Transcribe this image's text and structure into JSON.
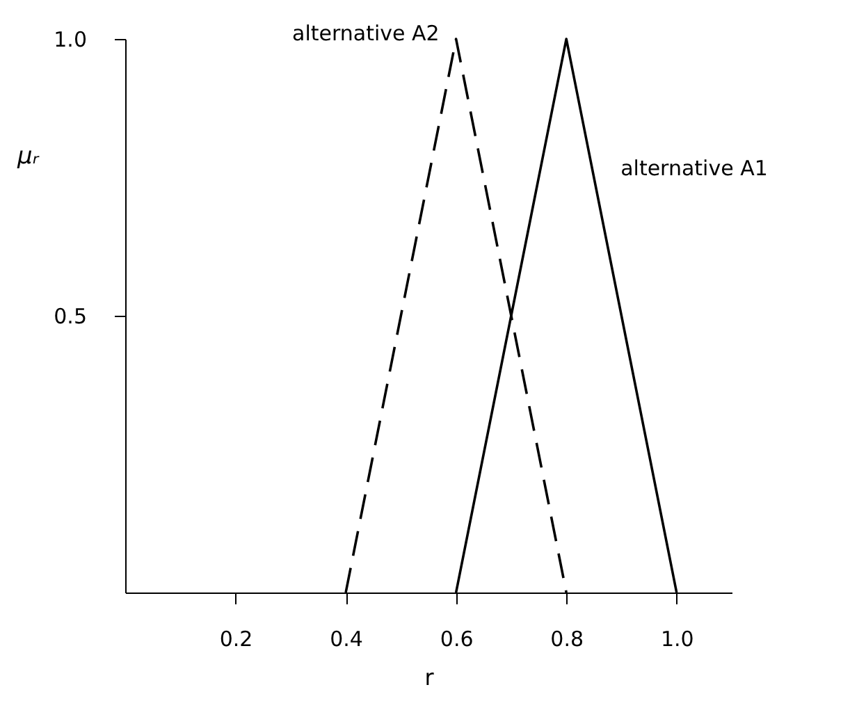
{
  "chart_data": {
    "type": "line",
    "xlabel": "r",
    "ylabel": "μᵣ",
    "series": [
      {
        "name": "alternative A2",
        "color": "#000000",
        "line_style": "dashed",
        "x": [
          0.4,
          0.6,
          0.8
        ],
        "values": [
          0,
          1.0,
          0
        ]
      },
      {
        "name": "alternative A1",
        "color": "#000000",
        "line_style": "solid",
        "x": [
          0.6,
          0.8,
          1.0
        ],
        "values": [
          0,
          1.0,
          0
        ]
      }
    ],
    "xlim": [
      0,
      1.1
    ],
    "ylim": [
      0,
      1.0
    ],
    "xticks": [
      0.2,
      0.4,
      0.6,
      0.8,
      {
        "value": 1,
        "label": "1.0"
      }
    ],
    "yticks": [
      0.5,
      {
        "value": 1,
        "label": "1.0"
      }
    ]
  }
}
